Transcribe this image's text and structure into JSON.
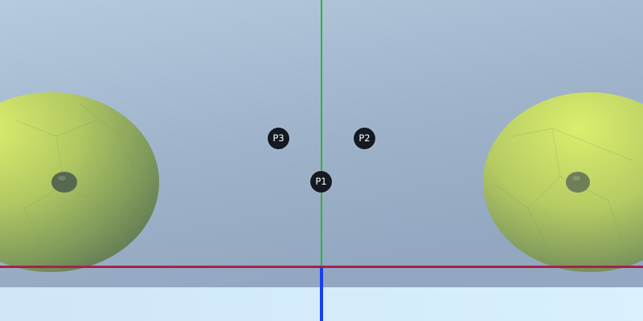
{
  "scene": {
    "colors": {
      "sky_top_left": "#b2c8dd",
      "sky_bottom": "#94aac2",
      "floor": "#d3ecfb",
      "axis_y": "#2fb335",
      "axis_x": "#a3234b",
      "axis_z": "#1a3ff0",
      "blob_light": "#d9ec6c",
      "blob_dark": "#6b8458",
      "marker_fill": "#141a22",
      "marker_text": "#ffffff"
    },
    "icons": {
      "left_blob": "textured-sphere-icon",
      "right_blob": "textured-sphere-icon",
      "left_eye": "dark-nub-icon",
      "right_eye": "dark-nub-icon"
    }
  },
  "markers": {
    "p1": {
      "label": "P1"
    },
    "p2": {
      "label": "P2"
    },
    "p3": {
      "label": "P3"
    }
  }
}
